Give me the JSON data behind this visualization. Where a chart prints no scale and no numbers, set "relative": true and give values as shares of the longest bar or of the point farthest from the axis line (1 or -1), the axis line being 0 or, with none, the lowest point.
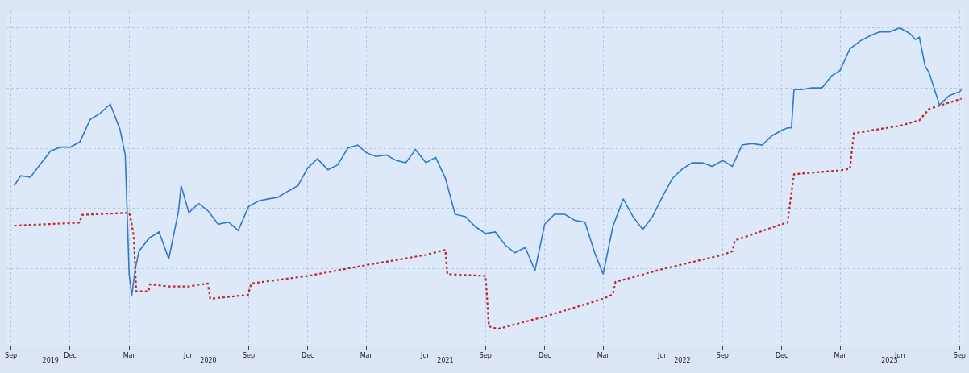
{
  "chart_data": {
    "type": "line",
    "relative": true,
    "grid": true,
    "marker": "none",
    "xlim": [
      "2019-08-25",
      "2023-09-08"
    ],
    "xticks": [
      {
        "value": "2019-09-01",
        "label": "Sep"
      },
      {
        "value": "2019-12-01",
        "label": "Dec"
      },
      {
        "value": "2020-03-01",
        "label": "Mar"
      },
      {
        "value": "2020-06-01",
        "label": "Jun"
      },
      {
        "value": "2020-09-01",
        "label": "Sep"
      },
      {
        "value": "2020-12-01",
        "label": "Dec"
      },
      {
        "value": "2021-03-01",
        "label": "Mar"
      },
      {
        "value": "2021-06-01",
        "label": "Jun"
      },
      {
        "value": "2021-09-01",
        "label": "Sep"
      },
      {
        "value": "2021-12-01",
        "label": "Dec"
      },
      {
        "value": "2022-03-01",
        "label": "Mar"
      },
      {
        "value": "2022-06-01",
        "label": "Jun"
      },
      {
        "value": "2022-09-01",
        "label": "Sep"
      },
      {
        "value": "2022-12-01",
        "label": "Dec"
      },
      {
        "value": "2023-03-01",
        "label": "Mar"
      },
      {
        "value": "2023-06-01",
        "label": "Jun"
      },
      {
        "value": "2023-09-01",
        "label": "Sep"
      }
    ],
    "x2lim": [
      "2019-08-25",
      "2023-09-08"
    ],
    "x2ticks": [
      {
        "value": "2019-11-01",
        "label": "2019"
      },
      {
        "value": "2020-07-01",
        "label": "2020"
      },
      {
        "value": "2021-07-01",
        "label": "2021"
      },
      {
        "value": "2022-07-01",
        "label": "2022"
      },
      {
        "value": "2023-05-16",
        "label": "2023"
      }
    ],
    "series": [
      {
        "color": "#2f7ad0",
        "line_style": "solid",
        "x": [
          "2019-09-06",
          "2019-09-16",
          "2019-10-01",
          "2019-10-16",
          "2019-11-01",
          "2019-11-16",
          "2019-12-01",
          "2019-12-16",
          "2020-01-01",
          "2020-01-16",
          "2020-02-01",
          "2020-02-16",
          "2020-02-24",
          "2020-03-01",
          "2020-03-05",
          "2020-03-10",
          "2020-03-16",
          "2020-04-01",
          "2020-04-16",
          "2020-05-01",
          "2020-05-16",
          "2020-05-20",
          "2020-06-01",
          "2020-06-16",
          "2020-07-01",
          "2020-07-16",
          "2020-08-01",
          "2020-08-16",
          "2020-09-01",
          "2020-09-16",
          "2020-10-01",
          "2020-10-16",
          "2020-11-01",
          "2020-11-16",
          "2020-12-01",
          "2020-12-16",
          "2021-01-01",
          "2021-01-16",
          "2021-02-01",
          "2021-02-16",
          "2021-03-01",
          "2021-03-16",
          "2021-04-01",
          "2021-04-16",
          "2021-05-01",
          "2021-05-16",
          "2021-06-01",
          "2021-06-16",
          "2021-07-01",
          "2021-07-16",
          "2021-08-01",
          "2021-08-16",
          "2021-09-01",
          "2021-09-16",
          "2021-10-01",
          "2021-10-16",
          "2021-11-01",
          "2021-11-16",
          "2021-12-01",
          "2021-12-16",
          "2022-01-01",
          "2022-01-16",
          "2022-02-01",
          "2022-02-16",
          "2022-03-01",
          "2022-03-16",
          "2022-04-01",
          "2022-04-16",
          "2022-05-01",
          "2022-05-16",
          "2022-06-01",
          "2022-06-16",
          "2022-07-01",
          "2022-07-16",
          "2022-08-01",
          "2022-08-16",
          "2022-09-01",
          "2022-09-16",
          "2022-10-01",
          "2022-10-16",
          "2022-11-01",
          "2022-11-16",
          "2022-12-01",
          "2022-12-10",
          "2022-12-16",
          "2022-12-20",
          "2023-01-01",
          "2023-01-16",
          "2023-02-01",
          "2023-02-16",
          "2023-03-01",
          "2023-03-16",
          "2023-04-01",
          "2023-04-16",
          "2023-05-01",
          "2023-05-16",
          "2023-06-01",
          "2023-06-16",
          "2023-06-25",
          "2023-07-01",
          "2023-07-10",
          "2023-07-16",
          "2023-08-01",
          "2023-08-16",
          "2023-09-01",
          "2023-09-04"
        ],
        "values": [
          0.476,
          0.509,
          0.504,
          0.547,
          0.591,
          0.604,
          0.604,
          0.621,
          0.696,
          0.716,
          0.747,
          0.662,
          0.578,
          0.182,
          0.11,
          0.194,
          0.258,
          0.302,
          0.322,
          0.233,
          0.391,
          0.476,
          0.386,
          0.417,
          0.391,
          0.348,
          0.355,
          0.327,
          0.407,
          0.425,
          0.432,
          0.437,
          0.458,
          0.476,
          0.535,
          0.565,
          0.529,
          0.545,
          0.601,
          0.611,
          0.586,
          0.573,
          0.578,
          0.56,
          0.552,
          0.596,
          0.552,
          0.57,
          0.501,
          0.381,
          0.373,
          0.34,
          0.317,
          0.322,
          0.279,
          0.253,
          0.271,
          0.194,
          0.348,
          0.381,
          0.381,
          0.361,
          0.355,
          0.253,
          0.182,
          0.34,
          0.432,
          0.373,
          0.33,
          0.373,
          0.442,
          0.501,
          0.532,
          0.552,
          0.552,
          0.54,
          0.56,
          0.54,
          0.611,
          0.616,
          0.611,
          0.642,
          0.66,
          0.668,
          0.668,
          0.795,
          0.795,
          0.801,
          0.801,
          0.841,
          0.859,
          0.931,
          0.957,
          0.974,
          0.987,
          0.987,
          1.0,
          0.982,
          0.962,
          0.969,
          0.872,
          0.852,
          0.744,
          0.775,
          0.788,
          0.795
        ]
      },
      {
        "color": "#c0272d",
        "line_style": "dotted",
        "x": [
          "2019-09-06",
          "2019-12-15",
          "2019-12-20",
          "2020-03-01",
          "2020-03-04",
          "2020-03-08",
          "2020-03-12",
          "2020-03-31",
          "2020-04-02",
          "2020-05-01",
          "2020-06-01",
          "2020-06-30",
          "2020-07-04",
          "2020-08-31",
          "2020-09-05",
          "2020-12-01",
          "2021-03-01",
          "2021-06-01",
          "2021-07-01",
          "2021-07-04",
          "2021-09-01",
          "2021-09-06",
          "2021-09-20",
          "2021-12-01",
          "2022-03-01",
          "2022-03-16",
          "2022-03-20",
          "2022-06-01",
          "2022-09-01",
          "2022-09-16",
          "2022-09-20",
          "2022-12-01",
          "2022-12-10",
          "2022-12-15",
          "2022-12-20",
          "2023-03-01",
          "2023-03-16",
          "2023-03-22",
          "2023-06-01",
          "2023-07-01",
          "2023-07-16",
          "2023-09-04"
        ],
        "values": [
          0.343,
          0.353,
          0.379,
          0.386,
          0.361,
          0.309,
          0.125,
          0.125,
          0.148,
          0.141,
          0.141,
          0.151,
          0.1,
          0.113,
          0.151,
          0.176,
          0.212,
          0.246,
          0.263,
          0.182,
          0.176,
          0.008,
          0.0,
          0.041,
          0.1,
          0.115,
          0.156,
          0.199,
          0.246,
          0.258,
          0.294,
          0.348,
          0.353,
          0.437,
          0.514,
          0.527,
          0.532,
          0.65,
          0.675,
          0.693,
          0.731,
          0.765
        ]
      }
    ]
  }
}
